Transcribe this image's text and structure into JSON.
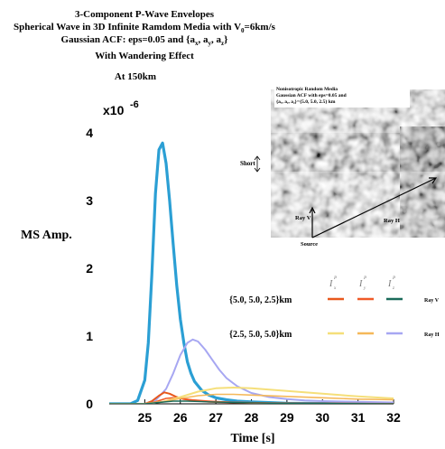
{
  "titles": {
    "line1": "3-Component P-Wave Envelopes",
    "line2_pre": "Spherical Wave in 3D Infinite Ramdom Media with V",
    "line2_sub": "0",
    "line2_post": "=6km/s",
    "line3_pre": "Gaussian ACF: eps=0.05 and  {a",
    "line3_sub1": "x",
    "line3_mid1": ", a",
    "line3_sub2": "y",
    "line3_mid2": ", a",
    "line3_sub3": "z",
    "line3_post": "}",
    "line4": "With Wandering Effect",
    "line5": "At 150km"
  },
  "inset": {
    "caption1": "Nonisotropic Random Media",
    "caption2": "Gaussian  ACF with eps=0.05 and",
    "caption3": "{aₓ, aᵧ, a₂}={5.0, 5.0, 2.5} km",
    "short_label": "Short",
    "ray_v_label": "Ray V",
    "ray_h_label": "Ray H",
    "source_label": "Source"
  },
  "legend": {
    "header": [
      "I",
      "I",
      "I"
    ],
    "header_sub": [
      "x",
      "y",
      "z"
    ],
    "header_sup": [
      "P",
      "P",
      "P"
    ],
    "rows": [
      {
        "label": "{5.0, 5.0, 2.5}km",
        "colors": [
          "#e8581c",
          "#f05a28",
          "#1a6b5a"
        ],
        "tag": "Ray V"
      },
      {
        "label": "{2.5, 5.0, 5.0}km",
        "colors": [
          "#f5df7a",
          "#f5b85a",
          "#a7a7f2"
        ],
        "tag": "Ray H"
      }
    ]
  },
  "chart_data": {
    "type": "line",
    "title": "3-Component P-Wave Envelopes",
    "xlabel": "Time [s]",
    "ylabel": "MS Amp.",
    "y_multiplier": "x10",
    "y_multiplier_exp": "-6",
    "xlim": [
      24,
      32
    ],
    "ylim": [
      0,
      4
    ],
    "x_ticks": [
      25,
      26,
      27,
      28,
      29,
      30,
      31,
      32
    ],
    "y_ticks": [
      0,
      1,
      2,
      3,
      4
    ],
    "grid": false,
    "series": [
      {
        "color": "#2b9fd4",
        "width": 3.2,
        "x": [
          24.0,
          24.6,
          24.8,
          25.0,
          25.1,
          25.2,
          25.3,
          25.4,
          25.5,
          25.6,
          25.7,
          25.8,
          25.9,
          26.0,
          26.1,
          26.2,
          26.3,
          26.4,
          26.6,
          26.8,
          27.0,
          27.3,
          27.6,
          28.0,
          29.0,
          32.0
        ],
        "y": [
          0.0,
          0.0,
          0.05,
          0.35,
          0.9,
          1.9,
          3.1,
          3.75,
          3.85,
          3.55,
          3.0,
          2.35,
          1.75,
          1.25,
          0.9,
          0.62,
          0.45,
          0.33,
          0.2,
          0.13,
          0.09,
          0.06,
          0.04,
          0.03,
          0.01,
          0.0
        ]
      },
      {
        "color": "#a7a7f2",
        "width": 2,
        "x": [
          24.0,
          25.0,
          25.3,
          25.6,
          25.8,
          26.0,
          26.2,
          26.35,
          26.5,
          26.7,
          26.9,
          27.1,
          27.3,
          27.6,
          28.0,
          28.5,
          29.0,
          29.5,
          30.0,
          31.0,
          32.0
        ],
        "y": [
          0.0,
          0.0,
          0.05,
          0.22,
          0.45,
          0.72,
          0.9,
          0.95,
          0.92,
          0.8,
          0.65,
          0.5,
          0.38,
          0.26,
          0.16,
          0.1,
          0.07,
          0.05,
          0.04,
          0.03,
          0.02
        ]
      },
      {
        "color": "#e8581c",
        "width": 2,
        "x": [
          24.0,
          25.0,
          25.2,
          25.4,
          25.55,
          25.7,
          25.9,
          26.1,
          26.4,
          26.8,
          27.5,
          28.5,
          32.0
        ],
        "y": [
          0.0,
          0.0,
          0.04,
          0.12,
          0.17,
          0.15,
          0.1,
          0.07,
          0.05,
          0.03,
          0.02,
          0.01,
          0.0
        ]
      },
      {
        "color": "#f05a28",
        "width": 1.6,
        "x": [
          24.0,
          25.0,
          25.3,
          25.6,
          25.8,
          26.0,
          26.3,
          26.8,
          27.5,
          28.5,
          32.0
        ],
        "y": [
          0.0,
          0.0,
          0.03,
          0.08,
          0.09,
          0.08,
          0.06,
          0.04,
          0.02,
          0.01,
          0.0
        ]
      },
      {
        "color": "#f5df7a",
        "width": 2,
        "x": [
          24.0,
          25.0,
          25.5,
          26.0,
          26.5,
          27.0,
          27.5,
          28.0,
          28.5,
          29.0,
          29.5,
          30.0,
          30.5,
          31.0,
          32.0
        ],
        "y": [
          0.0,
          0.0,
          0.03,
          0.1,
          0.18,
          0.23,
          0.24,
          0.23,
          0.21,
          0.19,
          0.17,
          0.15,
          0.13,
          0.11,
          0.08
        ]
      },
      {
        "color": "#f5b85a",
        "width": 1.6,
        "x": [
          24.0,
          25.0,
          25.5,
          26.0,
          26.5,
          27.0,
          27.5,
          28.0,
          29.0,
          30.0,
          31.0,
          32.0
        ],
        "y": [
          0.0,
          0.0,
          0.03,
          0.08,
          0.12,
          0.14,
          0.14,
          0.13,
          0.11,
          0.09,
          0.07,
          0.06
        ]
      },
      {
        "color": "#1a6b5a",
        "width": 1.4,
        "x": [
          24.0,
          25.0,
          25.4,
          25.8,
          26.2,
          26.8,
          27.5,
          28.5,
          32.0
        ],
        "y": [
          0.0,
          0.0,
          0.02,
          0.04,
          0.04,
          0.03,
          0.02,
          0.01,
          0.0
        ]
      }
    ]
  }
}
